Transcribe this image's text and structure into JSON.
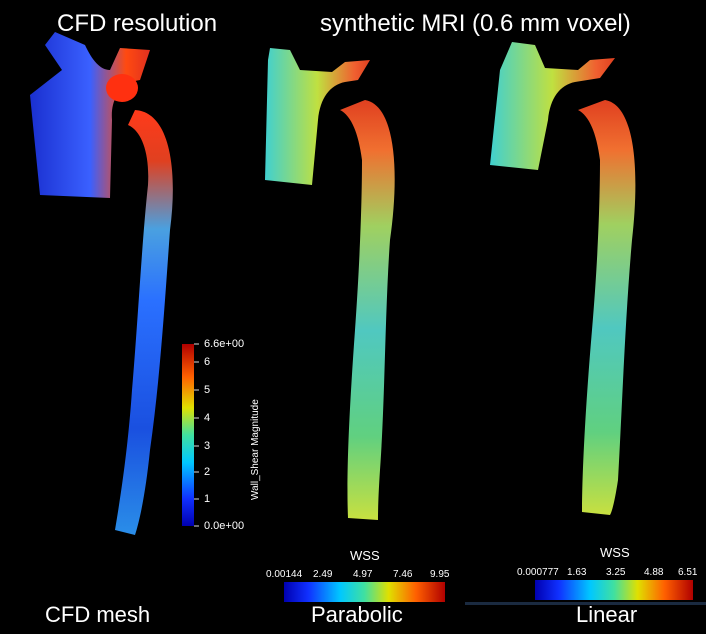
{
  "titles": {
    "left": "CFD resolution",
    "right": "synthetic MRI (0.6 mm voxel)"
  },
  "captions": {
    "cfd": "CFD mesh",
    "parabolic": "Parabolic",
    "linear": "Linear"
  },
  "colorbar_cfd": {
    "label": "Wall_Shear Magnitude",
    "max_label": "6.6e+00",
    "min_label": "0.0e+00",
    "ticks": [
      "6",
      "5",
      "4",
      "3",
      "2",
      "1"
    ]
  },
  "colorbar_parabolic": {
    "title": "WSS",
    "ticks": [
      "0.00144",
      "2.49",
      "4.97",
      "7.46",
      "9.95"
    ]
  },
  "colorbar_linear": {
    "title": "WSS",
    "ticks": [
      "0.000777",
      "1.63",
      "3.25",
      "4.88",
      "6.51"
    ]
  },
  "colors": {
    "background": "#000000",
    "jet_low": "#1a1aff",
    "jet_high": "#cc0000"
  }
}
